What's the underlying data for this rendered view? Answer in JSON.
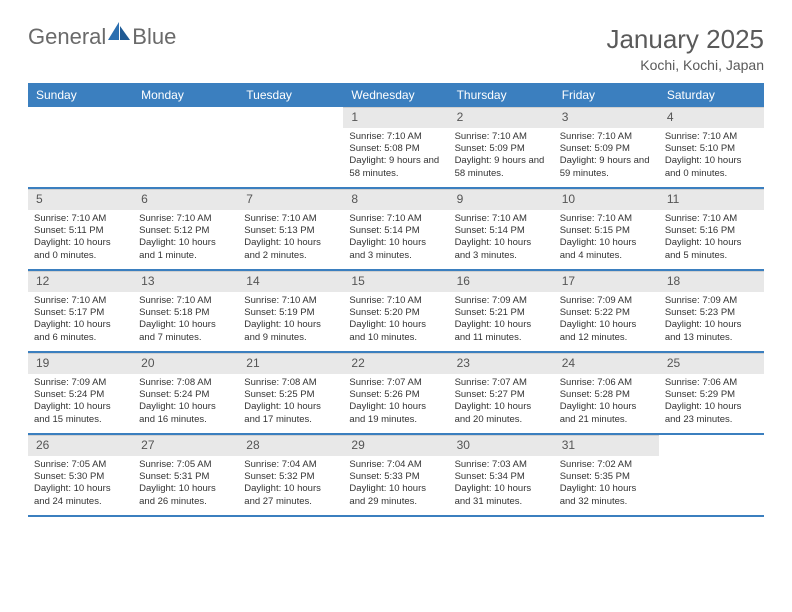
{
  "brand": {
    "part1": "General",
    "part2": "Blue"
  },
  "title": "January 2025",
  "subtitle": "Kochi, Kochi, Japan",
  "colors": {
    "header_bg": "#3b7fbf",
    "header_text": "#ffffff",
    "daynum_bg": "#e8e8e8",
    "page_bg": "#ffffff",
    "text": "#333333",
    "title_text": "#5a5a5a",
    "border": "#3b7fbf"
  },
  "typography": {
    "title_fontsize": 26,
    "subtitle_fontsize": 14,
    "dayhead_fontsize": 12,
    "cell_fontsize": 9.5
  },
  "day_headers": [
    "Sunday",
    "Monday",
    "Tuesday",
    "Wednesday",
    "Thursday",
    "Friday",
    "Saturday"
  ],
  "weeks": [
    [
      {
        "day": "",
        "empty": true
      },
      {
        "day": "",
        "empty": true
      },
      {
        "day": "",
        "empty": true
      },
      {
        "day": "1",
        "sunrise": "Sunrise: 7:10 AM",
        "sunset": "Sunset: 5:08 PM",
        "daylight": "Daylight: 9 hours and 58 minutes."
      },
      {
        "day": "2",
        "sunrise": "Sunrise: 7:10 AM",
        "sunset": "Sunset: 5:09 PM",
        "daylight": "Daylight: 9 hours and 58 minutes."
      },
      {
        "day": "3",
        "sunrise": "Sunrise: 7:10 AM",
        "sunset": "Sunset: 5:09 PM",
        "daylight": "Daylight: 9 hours and 59 minutes."
      },
      {
        "day": "4",
        "sunrise": "Sunrise: 7:10 AM",
        "sunset": "Sunset: 5:10 PM",
        "daylight": "Daylight: 10 hours and 0 minutes."
      }
    ],
    [
      {
        "day": "5",
        "sunrise": "Sunrise: 7:10 AM",
        "sunset": "Sunset: 5:11 PM",
        "daylight": "Daylight: 10 hours and 0 minutes."
      },
      {
        "day": "6",
        "sunrise": "Sunrise: 7:10 AM",
        "sunset": "Sunset: 5:12 PM",
        "daylight": "Daylight: 10 hours and 1 minute."
      },
      {
        "day": "7",
        "sunrise": "Sunrise: 7:10 AM",
        "sunset": "Sunset: 5:13 PM",
        "daylight": "Daylight: 10 hours and 2 minutes."
      },
      {
        "day": "8",
        "sunrise": "Sunrise: 7:10 AM",
        "sunset": "Sunset: 5:14 PM",
        "daylight": "Daylight: 10 hours and 3 minutes."
      },
      {
        "day": "9",
        "sunrise": "Sunrise: 7:10 AM",
        "sunset": "Sunset: 5:14 PM",
        "daylight": "Daylight: 10 hours and 3 minutes."
      },
      {
        "day": "10",
        "sunrise": "Sunrise: 7:10 AM",
        "sunset": "Sunset: 5:15 PM",
        "daylight": "Daylight: 10 hours and 4 minutes."
      },
      {
        "day": "11",
        "sunrise": "Sunrise: 7:10 AM",
        "sunset": "Sunset: 5:16 PM",
        "daylight": "Daylight: 10 hours and 5 minutes."
      }
    ],
    [
      {
        "day": "12",
        "sunrise": "Sunrise: 7:10 AM",
        "sunset": "Sunset: 5:17 PM",
        "daylight": "Daylight: 10 hours and 6 minutes."
      },
      {
        "day": "13",
        "sunrise": "Sunrise: 7:10 AM",
        "sunset": "Sunset: 5:18 PM",
        "daylight": "Daylight: 10 hours and 7 minutes."
      },
      {
        "day": "14",
        "sunrise": "Sunrise: 7:10 AM",
        "sunset": "Sunset: 5:19 PM",
        "daylight": "Daylight: 10 hours and 9 minutes."
      },
      {
        "day": "15",
        "sunrise": "Sunrise: 7:10 AM",
        "sunset": "Sunset: 5:20 PM",
        "daylight": "Daylight: 10 hours and 10 minutes."
      },
      {
        "day": "16",
        "sunrise": "Sunrise: 7:09 AM",
        "sunset": "Sunset: 5:21 PM",
        "daylight": "Daylight: 10 hours and 11 minutes."
      },
      {
        "day": "17",
        "sunrise": "Sunrise: 7:09 AM",
        "sunset": "Sunset: 5:22 PM",
        "daylight": "Daylight: 10 hours and 12 minutes."
      },
      {
        "day": "18",
        "sunrise": "Sunrise: 7:09 AM",
        "sunset": "Sunset: 5:23 PM",
        "daylight": "Daylight: 10 hours and 13 minutes."
      }
    ],
    [
      {
        "day": "19",
        "sunrise": "Sunrise: 7:09 AM",
        "sunset": "Sunset: 5:24 PM",
        "daylight": "Daylight: 10 hours and 15 minutes."
      },
      {
        "day": "20",
        "sunrise": "Sunrise: 7:08 AM",
        "sunset": "Sunset: 5:24 PM",
        "daylight": "Daylight: 10 hours and 16 minutes."
      },
      {
        "day": "21",
        "sunrise": "Sunrise: 7:08 AM",
        "sunset": "Sunset: 5:25 PM",
        "daylight": "Daylight: 10 hours and 17 minutes."
      },
      {
        "day": "22",
        "sunrise": "Sunrise: 7:07 AM",
        "sunset": "Sunset: 5:26 PM",
        "daylight": "Daylight: 10 hours and 19 minutes."
      },
      {
        "day": "23",
        "sunrise": "Sunrise: 7:07 AM",
        "sunset": "Sunset: 5:27 PM",
        "daylight": "Daylight: 10 hours and 20 minutes."
      },
      {
        "day": "24",
        "sunrise": "Sunrise: 7:06 AM",
        "sunset": "Sunset: 5:28 PM",
        "daylight": "Daylight: 10 hours and 21 minutes."
      },
      {
        "day": "25",
        "sunrise": "Sunrise: 7:06 AM",
        "sunset": "Sunset: 5:29 PM",
        "daylight": "Daylight: 10 hours and 23 minutes."
      }
    ],
    [
      {
        "day": "26",
        "sunrise": "Sunrise: 7:05 AM",
        "sunset": "Sunset: 5:30 PM",
        "daylight": "Daylight: 10 hours and 24 minutes."
      },
      {
        "day": "27",
        "sunrise": "Sunrise: 7:05 AM",
        "sunset": "Sunset: 5:31 PM",
        "daylight": "Daylight: 10 hours and 26 minutes."
      },
      {
        "day": "28",
        "sunrise": "Sunrise: 7:04 AM",
        "sunset": "Sunset: 5:32 PM",
        "daylight": "Daylight: 10 hours and 27 minutes."
      },
      {
        "day": "29",
        "sunrise": "Sunrise: 7:04 AM",
        "sunset": "Sunset: 5:33 PM",
        "daylight": "Daylight: 10 hours and 29 minutes."
      },
      {
        "day": "30",
        "sunrise": "Sunrise: 7:03 AM",
        "sunset": "Sunset: 5:34 PM",
        "daylight": "Daylight: 10 hours and 31 minutes."
      },
      {
        "day": "31",
        "sunrise": "Sunrise: 7:02 AM",
        "sunset": "Sunset: 5:35 PM",
        "daylight": "Daylight: 10 hours and 32 minutes."
      },
      {
        "day": "",
        "empty": true
      }
    ]
  ]
}
